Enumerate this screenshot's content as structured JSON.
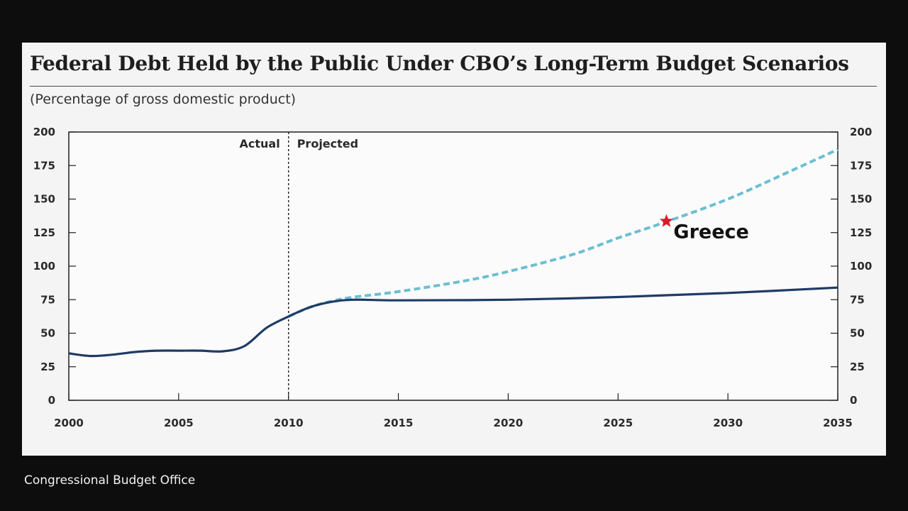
{
  "source": "Congressional Budget Office",
  "colors": {
    "background": "#0d0d0d",
    "panel": "#f4f4f4",
    "extended_baseline": "#1f3b66",
    "alternative_fiscal": "#6cbfd0",
    "marker": "#d81b2a"
  },
  "chart_data": {
    "type": "line",
    "title": "Federal Debt Held by the Public Under CBO’s Long-Term Budget Scenarios",
    "subtitle": "(Percentage of gross domestic product)",
    "xlim": [
      2000,
      2035
    ],
    "ylim": [
      0,
      200
    ],
    "x_ticks": [
      2000,
      2005,
      2010,
      2015,
      2020,
      2025,
      2030,
      2035
    ],
    "y_ticks": [
      0,
      25,
      50,
      75,
      100,
      125,
      150,
      175,
      200
    ],
    "y_axis_both_sides": true,
    "grid": false,
    "divider": {
      "x": 2010,
      "left_label": "Actual",
      "right_label": "Projected"
    },
    "series": [
      {
        "style": "solid",
        "points": [
          [
            2000,
            35
          ],
          [
            2001,
            33
          ],
          [
            2002,
            34
          ],
          [
            2003,
            36
          ],
          [
            2004,
            37
          ],
          [
            2005,
            37
          ],
          [
            2006,
            37
          ],
          [
            2007,
            36.5
          ],
          [
            2008,
            40.5
          ],
          [
            2009,
            54
          ],
          [
            2010,
            62.5
          ],
          [
            2011,
            69.5
          ],
          [
            2012,
            73.5
          ],
          [
            2013,
            75
          ],
          [
            2015,
            74.5
          ],
          [
            2020,
            75
          ],
          [
            2025,
            77
          ],
          [
            2030,
            80
          ],
          [
            2035,
            84
          ]
        ]
      },
      {
        "style": "dashed",
        "points": [
          [
            2010,
            62.5
          ],
          [
            2011,
            69.5
          ],
          [
            2012,
            74
          ],
          [
            2013,
            77
          ],
          [
            2015,
            81
          ],
          [
            2018,
            89
          ],
          [
            2020,
            96
          ],
          [
            2023,
            109
          ],
          [
            2025,
            121
          ],
          [
            2027,
            132
          ],
          [
            2030,
            150
          ],
          [
            2033,
            172
          ],
          [
            2035,
            187
          ]
        ]
      }
    ],
    "annotations": [
      {
        "label": "Greece",
        "x": 2027.2,
        "y": 133.5,
        "marker": "star"
      }
    ]
  }
}
